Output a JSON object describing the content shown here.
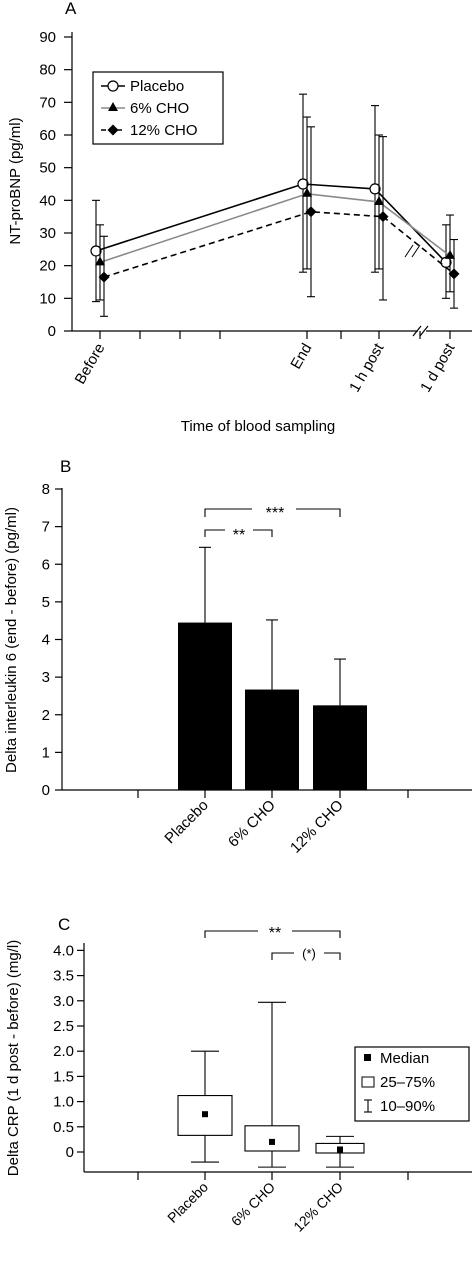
{
  "chart_data": [
    {
      "panel_label": "A",
      "type": "line",
      "ylabel": "NT-proBNP (pg/ml)",
      "xlabel": "Time of blood sampling",
      "ylim": [
        0,
        90
      ],
      "yticks": [
        0,
        10,
        20,
        30,
        40,
        50,
        60,
        70,
        80,
        90
      ],
      "x_positions": [
        0,
        0.5,
        1,
        1.5,
        2,
        2.5,
        3,
        3.5,
        4
      ],
      "xtick_labels": [
        "Before",
        "",
        "",
        "",
        "End",
        "",
        "1 h post",
        "",
        "1 d post"
      ],
      "axis_break_between": [
        "1 h post",
        "1 d post"
      ],
      "grid": false,
      "legend_position": "top-left",
      "series": [
        {
          "name": "Placebo",
          "marker": "open-circle",
          "line": "solid",
          "color": "#000000",
          "x": [
            0,
            2,
            3,
            4
          ],
          "mean": [
            24.5,
            45,
            43.5,
            21
          ],
          "err_upper": [
            40,
            72.5,
            69,
            32.5
          ],
          "err_lower": [
            9,
            18,
            18,
            10
          ]
        },
        {
          "name": "6% CHO",
          "marker": "filled-triangle",
          "line": "solid-gray",
          "color": "#8a8a8a",
          "x": [
            0,
            2,
            3,
            4
          ],
          "mean": [
            21,
            42,
            39.5,
            23
          ],
          "err_upper": [
            32.5,
            65.5,
            60,
            35.5
          ],
          "err_lower": [
            9.5,
            19,
            19,
            12
          ]
        },
        {
          "name": "12% CHO",
          "marker": "filled-diamond",
          "line": "dashed",
          "color": "#000000",
          "x": [
            0,
            2,
            3,
            4
          ],
          "mean": [
            16.5,
            36.5,
            35,
            17.5
          ],
          "err_upper": [
            29,
            62.5,
            59.5,
            28
          ],
          "err_lower": [
            4.5,
            10.5,
            9.5,
            7
          ]
        }
      ]
    },
    {
      "panel_label": "B",
      "type": "bar",
      "ylabel": "Delta interleukin 6 (end - before) (pg/ml)",
      "ylim": [
        0,
        8
      ],
      "yticks": [
        0,
        1,
        2,
        3,
        4,
        5,
        6,
        7,
        8
      ],
      "categories": [
        "Placebo",
        "6% CHO",
        "12% CHO"
      ],
      "values": [
        4.45,
        2.67,
        2.25
      ],
      "err_upper": [
        6.45,
        4.52,
        3.48
      ],
      "bar_color": "#000000",
      "significance": [
        {
          "from": "Placebo",
          "to": "6% CHO",
          "label": "**"
        },
        {
          "from": "Placebo",
          "to": "12% CHO",
          "label": "***"
        }
      ]
    },
    {
      "panel_label": "C",
      "type": "box",
      "ylabel": "Delta CRP (1 d post - before) (mg/l)",
      "ylim": [
        -0.25,
        4.0
      ],
      "yticks": [
        "0",
        "0.5",
        "1.0",
        "1.5",
        "2.0",
        "2.5",
        "3.0",
        "3.5",
        "4.0"
      ],
      "categories": [
        "Placebo",
        "6% CHO",
        "12% CHO"
      ],
      "boxes": [
        {
          "category": "Placebo",
          "p10": -0.2,
          "p25": 0.33,
          "median": 0.75,
          "p75": 1.12,
          "p90": 2.0
        },
        {
          "category": "6% CHO",
          "p10": -0.3,
          "p25": 0.02,
          "median": 0.2,
          "p75": 0.52,
          "p90": 2.97
        },
        {
          "category": "12% CHO",
          "p10": -0.3,
          "p25": -0.02,
          "median": 0.05,
          "p75": 0.17,
          "p90": 0.31
        }
      ],
      "legend_position": "center-right",
      "legend": [
        "Median",
        "25–75%",
        "10–90%"
      ],
      "significance": [
        {
          "from": "Placebo",
          "to": "12% CHO",
          "label": "**"
        },
        {
          "from": "6% CHO",
          "to": "12% CHO",
          "label": "(*)"
        }
      ]
    }
  ]
}
